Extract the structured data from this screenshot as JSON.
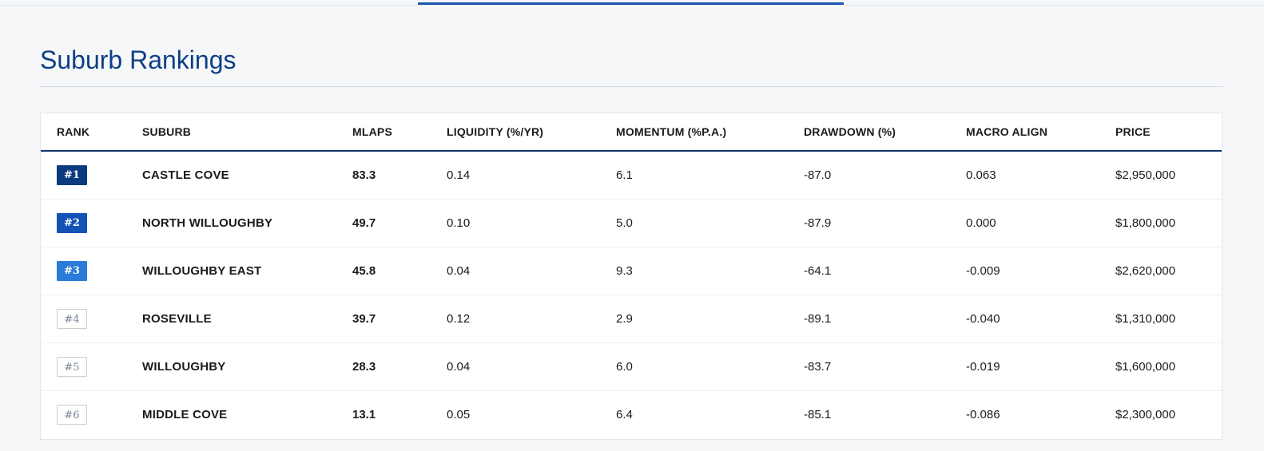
{
  "page": {
    "title": "Suburb Rankings"
  },
  "table": {
    "columns": [
      "RANK",
      "SUBURB",
      "MLAPS",
      "LIQUIDITY (%/YR)",
      "MOMENTUM (%P.A.)",
      "DRAWDOWN (%)",
      "MACRO ALIGN",
      "PRICE"
    ],
    "rows": [
      {
        "rank": "#1",
        "suburb": "CASTLE COVE",
        "mlaps": "83.3",
        "liquidity": "0.14",
        "momentum": "6.1",
        "drawdown": "-87.0",
        "macro": "0.063",
        "price": "$2,950,000"
      },
      {
        "rank": "#2",
        "suburb": "NORTH WILLOUGHBY",
        "mlaps": "49.7",
        "liquidity": "0.10",
        "momentum": "5.0",
        "drawdown": "-87.9",
        "macro": "0.000",
        "price": "$1,800,000"
      },
      {
        "rank": "#3",
        "suburb": "WILLOUGHBY EAST",
        "mlaps": "45.8",
        "liquidity": "0.04",
        "momentum": "9.3",
        "drawdown": "-64.1",
        "macro": "-0.009",
        "price": "$2,620,000"
      },
      {
        "rank": "#4",
        "suburb": "ROSEVILLE",
        "mlaps": "39.7",
        "liquidity": "0.12",
        "momentum": "2.9",
        "drawdown": "-89.1",
        "macro": "-0.040",
        "price": "$1,310,000"
      },
      {
        "rank": "#5",
        "suburb": "WILLOUGHBY",
        "mlaps": "28.3",
        "liquidity": "0.04",
        "momentum": "6.0",
        "drawdown": "-83.7",
        "macro": "-0.019",
        "price": "$1,600,000"
      },
      {
        "rank": "#6",
        "suburb": "MIDDLE COVE",
        "mlaps": "13.1",
        "liquidity": "0.05",
        "momentum": "6.4",
        "drawdown": "-85.1",
        "macro": "-0.086",
        "price": "$2,300,000"
      }
    ]
  },
  "colors": {
    "accent": "#1a56b0",
    "title": "#0d3f85",
    "rank_1": "#0b3a7e",
    "rank_2": "#1452b8",
    "rank_3": "#2b7bd8"
  }
}
